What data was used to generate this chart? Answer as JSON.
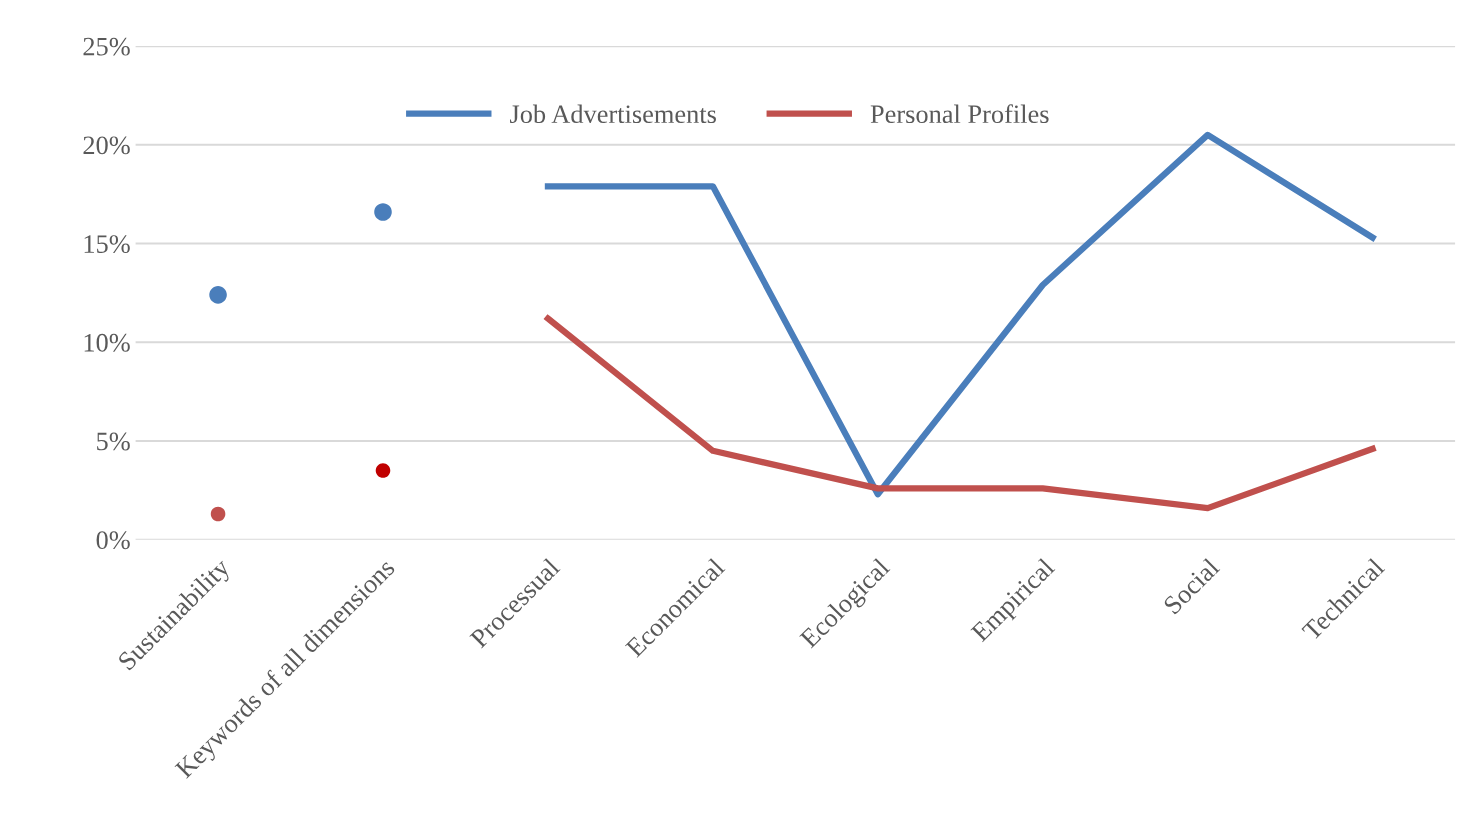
{
  "chart_data": {
    "type": "line",
    "categories": [
      "Sustainability",
      "Keywords of all dimensions",
      "Processual",
      "Economical",
      "Ecological",
      "Empirical",
      "Social",
      "Technical"
    ],
    "series": [
      {
        "name": "Job Advertisements",
        "color": "#4a7ebb",
        "values": [
          null,
          null,
          17.9,
          17.9,
          2.3,
          12.9,
          20.5,
          15.3
        ],
        "marker": "none"
      },
      {
        "name": "Personal Profiles",
        "color": "#c0504d",
        "values": [
          null,
          null,
          11.2,
          4.5,
          2.6,
          2.6,
          1.6,
          4.6
        ],
        "marker": "none"
      },
      {
        "type": "scatter",
        "color": "#4a7ebb",
        "values": [
          12.4,
          16.6,
          null,
          null,
          null,
          null,
          null,
          null
        ],
        "marker": "circle"
      },
      {
        "type": "scatter",
        "colors": [
          "#c0504d",
          "#c00000",
          "#c0504d",
          "#c0504d",
          "#c0504d",
          "#c0504d",
          "#c0504d",
          "#c0504d"
        ],
        "values": [
          1.3,
          3.5,
          null,
          null,
          null,
          null,
          null,
          null
        ],
        "marker": "circle"
      }
    ],
    "ylim": [
      0,
      25
    ],
    "yticks": [
      {
        "value": 0,
        "label": "0%"
      },
      {
        "value": 5,
        "label": "5%"
      },
      {
        "value": 10,
        "label": "10%"
      },
      {
        "value": 15,
        "label": "15%"
      },
      {
        "value": 20,
        "label": "20%"
      },
      {
        "value": 25,
        "label": "25%"
      }
    ],
    "grid": "y",
    "legend": "top"
  }
}
